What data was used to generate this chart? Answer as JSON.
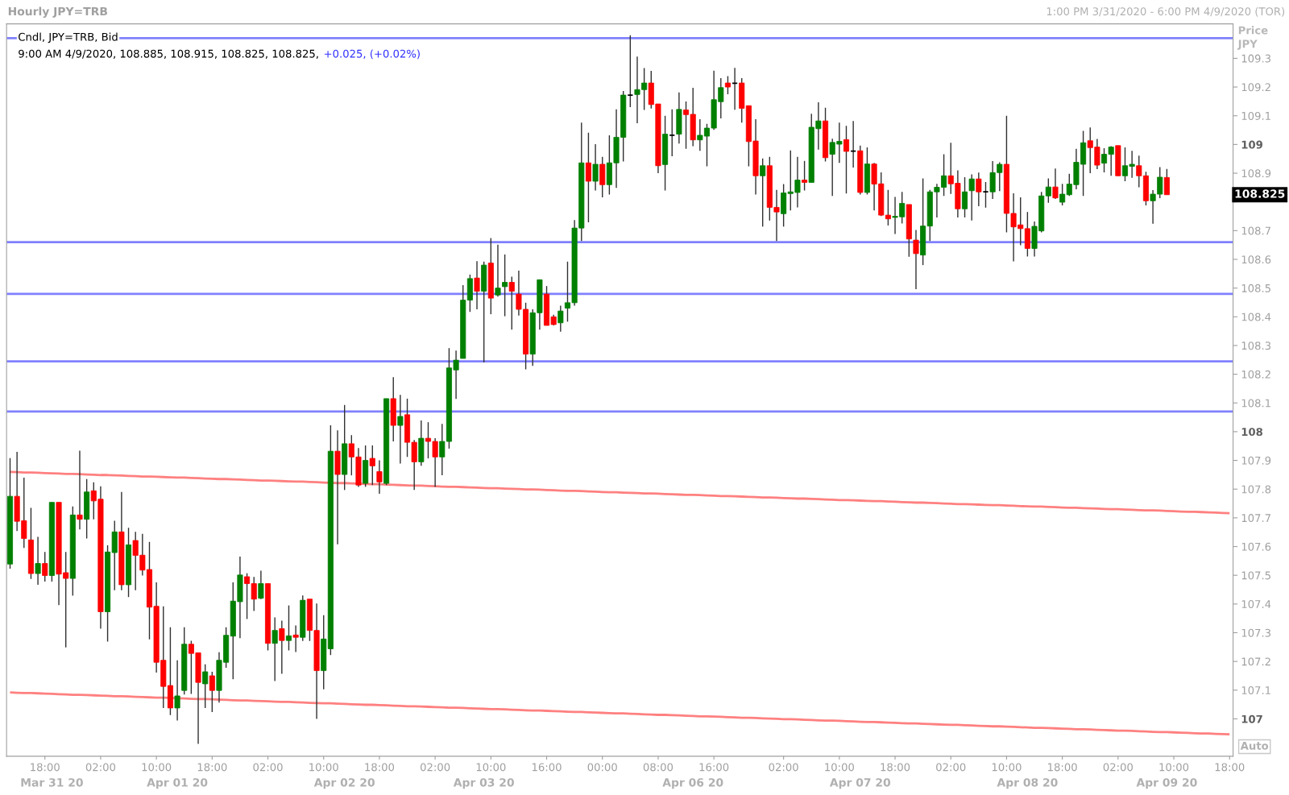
{
  "chart_data": {
    "type": "candlestick",
    "title": "Hourly JPY=TRB",
    "subtitle": "1:00 PM 3/31/2020 - 6:00 PM 4/9/2020 (TOR)",
    "ylabel": "Price\nJPY",
    "annotations": [
      "Cndl, JPY=TRB, Bid",
      "9:00 AM 4/9/2020, 108.885, 108.915, 108.825, 108.825,",
      "+0.025, (+0.02%)",
      "108.825",
      "Auto"
    ],
    "categories": [
      null,
      null,
      null,
      null,
      null,
      "18:00",
      "\nMar 31 20",
      null,
      null,
      null,
      null,
      null,
      null,
      "02:00",
      null,
      null,
      null,
      null,
      null,
      null,
      null,
      "10:00",
      null,
      null,
      "\nApr 01 20",
      null,
      null,
      null,
      null,
      "18:00",
      null,
      null,
      null,
      null,
      null,
      null,
      null,
      "02:00",
      null,
      null,
      null,
      null,
      null,
      null,
      null,
      "10:00",
      null,
      null,
      "\nApr 02 20",
      null,
      null,
      null,
      null,
      "18:00",
      null,
      null,
      null,
      null,
      null,
      null,
      null,
      "02:00",
      null,
      null,
      null,
      null,
      null,
      null,
      "\nApr 03 20",
      "10:00",
      null,
      null,
      null,
      null,
      null,
      null,
      null,
      "16:00",
      null,
      null,
      null,
      null,
      null,
      null,
      null,
      "00:00",
      null,
      null,
      null,
      null,
      null,
      null,
      null,
      "08:00",
      null,
      null,
      null,
      null,
      "\nApr 06 20",
      null,
      null,
      "16:00",
      null,
      null,
      null,
      null,
      null,
      null,
      null,
      null,
      null,
      "02:00",
      null,
      null,
      null,
      null,
      null,
      null,
      null,
      "10:00",
      null,
      null,
      "\nApr 07 20",
      null,
      null,
      null,
      null,
      "18:00",
      null,
      null,
      null,
      null,
      null,
      null,
      null,
      "02:00",
      null,
      null,
      null,
      null,
      null,
      null,
      null,
      "10:00",
      null,
      null,
      "\nApr 08 20",
      null,
      null,
      null,
      null,
      "18:00",
      null,
      null,
      null,
      null,
      null,
      null,
      null,
      "02:00",
      null,
      null,
      null,
      null,
      null,
      null,
      "\nApr 09 20",
      "10:00",
      null,
      null,
      null,
      null,
      null,
      null,
      null,
      "18:00"
    ],
    "ohlc": [
      [
        107.539,
        107.908,
        107.523,
        107.775
      ],
      [
        107.775,
        107.93,
        107.654,
        107.688
      ],
      [
        107.69,
        107.84,
        107.595,
        107.628
      ],
      [
        107.623,
        107.735,
        107.487,
        107.506
      ],
      [
        107.506,
        107.634,
        107.467,
        107.541
      ],
      [
        107.541,
        107.581,
        107.478,
        107.499
      ],
      [
        107.499,
        107.754,
        107.478,
        107.754
      ],
      [
        107.754,
        107.754,
        107.396,
        107.504
      ],
      [
        107.509,
        107.581,
        107.249,
        107.489
      ],
      [
        107.489,
        107.74,
        107.429,
        107.71
      ],
      [
        107.71,
        107.934,
        107.66,
        107.695
      ],
      [
        107.695,
        107.835,
        107.628,
        107.79
      ],
      [
        107.794,
        107.824,
        107.695,
        107.759
      ],
      [
        107.765,
        107.81,
        107.314,
        107.373
      ],
      [
        107.373,
        107.604,
        107.269,
        107.581
      ],
      [
        107.579,
        107.69,
        107.448,
        107.651
      ],
      [
        107.651,
        107.79,
        107.448,
        107.467
      ],
      [
        107.467,
        107.665,
        107.424,
        107.606
      ],
      [
        107.621,
        107.651,
        107.448,
        107.569
      ],
      [
        107.57,
        107.644,
        107.499,
        107.518
      ],
      [
        107.52,
        107.616,
        107.277,
        107.389
      ],
      [
        107.392,
        107.475,
        107.161,
        107.197
      ],
      [
        107.204,
        107.392,
        107.038,
        107.113
      ],
      [
        107.116,
        107.319,
        107.013,
        107.038
      ],
      [
        107.038,
        107.204,
        106.994,
        107.08
      ],
      [
        107.099,
        107.319,
        107.085,
        107.26
      ],
      [
        107.26,
        107.272,
        107.087,
        107.228
      ],
      [
        107.23,
        107.23,
        106.913,
        107.127
      ],
      [
        107.122,
        107.19,
        107.038,
        107.164
      ],
      [
        107.15,
        107.164,
        107.024,
        107.099
      ],
      [
        107.099,
        107.232,
        107.057,
        107.204
      ],
      [
        107.197,
        107.319,
        107.178,
        107.291
      ],
      [
        107.288,
        107.475,
        107.138,
        107.41
      ],
      [
        107.408,
        107.565,
        107.281,
        107.501
      ],
      [
        107.495,
        107.507,
        107.348,
        107.471
      ],
      [
        107.471,
        107.494,
        107.376,
        107.417
      ],
      [
        107.42,
        107.516,
        107.417,
        107.471
      ],
      [
        107.471,
        107.471,
        107.238,
        107.263
      ],
      [
        107.263,
        107.353,
        107.132,
        107.308
      ],
      [
        107.314,
        107.342,
        107.157,
        107.273
      ],
      [
        107.273,
        107.395,
        107.238,
        107.289
      ],
      [
        107.292,
        107.325,
        107.233,
        107.284
      ],
      [
        107.284,
        107.43,
        107.271,
        107.413
      ],
      [
        107.417,
        107.417,
        107.271,
        107.308
      ],
      [
        107.308,
        107.402,
        107.0,
        107.168
      ],
      [
        107.168,
        107.361,
        107.103,
        107.278
      ],
      [
        107.244,
        108.022,
        107.222,
        107.932
      ],
      [
        107.932,
        108.005,
        107.608,
        107.851
      ],
      [
        107.851,
        108.093,
        107.797,
        107.958
      ],
      [
        107.958,
        107.988,
        107.848,
        107.912
      ],
      [
        107.912,
        107.943,
        107.808,
        107.814
      ],
      [
        107.82,
        107.952,
        107.808,
        107.9
      ],
      [
        107.907,
        107.952,
        107.814,
        107.881
      ],
      [
        107.861,
        107.9,
        107.784,
        107.825
      ],
      [
        107.82,
        108.115,
        107.814,
        108.115
      ],
      [
        108.115,
        108.19,
        107.966,
        108.022
      ],
      [
        108.022,
        108.128,
        107.889,
        108.053
      ],
      [
        108.059,
        108.115,
        107.912,
        107.963
      ],
      [
        107.963,
        107.971,
        107.797,
        107.895
      ],
      [
        107.895,
        108.039,
        107.881,
        107.977
      ],
      [
        107.977,
        108.033,
        107.907,
        107.966
      ],
      [
        107.966,
        107.977,
        107.808,
        107.912
      ],
      [
        107.912,
        108.027,
        107.848,
        107.966
      ],
      [
        107.966,
        108.291,
        107.941,
        108.222
      ],
      [
        108.215,
        108.282,
        108.114,
        108.249
      ],
      [
        108.255,
        108.51,
        108.255,
        108.458
      ],
      [
        108.458,
        108.547,
        108.417,
        108.533
      ],
      [
        108.535,
        108.594,
        108.426,
        108.489
      ],
      [
        108.489,
        108.592,
        108.241,
        108.58
      ],
      [
        108.587,
        108.674,
        108.409,
        108.465
      ],
      [
        108.476,
        108.651,
        108.47,
        108.5
      ],
      [
        108.505,
        108.617,
        108.402,
        108.52
      ],
      [
        108.52,
        108.54,
        108.355,
        108.489
      ],
      [
        108.479,
        108.561,
        108.404,
        108.426
      ],
      [
        108.426,
        108.449,
        108.217,
        108.27
      ],
      [
        108.27,
        108.426,
        108.229,
        108.414
      ],
      [
        108.414,
        108.529,
        108.355,
        108.529
      ],
      [
        108.479,
        108.507,
        108.37,
        108.37
      ],
      [
        108.4,
        108.407,
        108.37,
        108.373
      ],
      [
        108.379,
        108.439,
        108.348,
        108.42
      ],
      [
        108.43,
        108.592,
        108.383,
        108.449
      ],
      [
        108.449,
        108.737,
        108.439,
        108.709
      ],
      [
        108.709,
        109.076,
        108.664,
        108.936
      ],
      [
        108.936,
        109.041,
        108.729,
        108.872
      ],
      [
        108.872,
        109.001,
        108.84,
        108.931
      ],
      [
        108.931,
        108.957,
        108.816,
        108.86
      ],
      [
        108.86,
        109.032,
        108.826,
        108.936
      ],
      [
        108.936,
        109.122,
        108.849,
        109.025
      ],
      [
        109.025,
        109.186,
        108.941,
        109.172
      ],
      [
        109.172,
        109.38,
        109.13,
        109.172
      ],
      [
        109.174,
        109.306,
        109.074,
        109.191
      ],
      [
        109.191,
        109.266,
        109.12,
        109.214
      ],
      [
        109.214,
        109.256,
        109.125,
        109.139
      ],
      [
        109.141,
        109.141,
        108.9,
        108.926
      ],
      [
        108.93,
        109.1,
        108.84,
        109.036
      ],
      [
        109.032,
        109.122,
        108.959,
        109.032
      ],
      [
        109.036,
        109.181,
        109.003,
        109.122
      ],
      [
        109.12,
        109.15,
        108.985,
        109.104
      ],
      [
        109.105,
        109.197,
        108.994,
        109.016
      ],
      [
        109.016,
        109.088,
        108.978,
        109.032
      ],
      [
        109.029,
        109.072,
        108.924,
        109.057
      ],
      [
        109.057,
        109.257,
        109.051,
        109.156
      ],
      [
        109.149,
        109.231,
        109.091,
        109.198
      ],
      [
        109.214,
        109.238,
        109.175,
        109.2
      ],
      [
        109.213,
        109.267,
        109.121,
        109.213
      ],
      [
        109.214,
        109.231,
        109.076,
        109.126
      ],
      [
        109.135,
        109.135,
        108.924,
        109.01
      ],
      [
        109.012,
        109.088,
        108.826,
        108.891
      ],
      [
        108.891,
        108.951,
        108.714,
        108.926
      ],
      [
        108.926,
        108.957,
        108.735,
        108.781
      ],
      [
        108.781,
        108.842,
        108.664,
        108.765
      ],
      [
        108.759,
        108.862,
        108.714,
        108.831
      ],
      [
        108.829,
        108.979,
        108.77,
        108.835
      ],
      [
        108.833,
        108.957,
        108.781,
        108.876
      ],
      [
        108.876,
        108.943,
        108.84,
        108.868
      ],
      [
        108.868,
        109.107,
        108.868,
        109.06
      ],
      [
        109.055,
        109.147,
        108.982,
        109.082
      ],
      [
        109.082,
        109.128,
        108.941,
        108.954
      ],
      [
        108.966,
        109.02,
        108.821,
        109.007
      ],
      [
        109.001,
        109.076,
        108.936,
        109.011
      ],
      [
        109.017,
        109.065,
        108.829,
        108.976
      ],
      [
        108.977,
        109.082,
        108.92,
        108.977
      ],
      [
        108.978,
        108.996,
        108.826,
        108.833
      ],
      [
        108.833,
        108.99,
        108.826,
        108.932
      ],
      [
        108.932,
        108.936,
        108.77,
        108.862
      ],
      [
        108.863,
        108.903,
        108.751,
        108.754
      ],
      [
        108.754,
        108.842,
        108.718,
        108.741
      ],
      [
        108.746,
        108.817,
        108.688,
        108.75
      ],
      [
        108.748,
        108.835,
        108.725,
        108.795
      ],
      [
        108.791,
        108.791,
        108.609,
        108.671
      ],
      [
        108.667,
        108.702,
        108.496,
        108.62
      ],
      [
        108.615,
        108.882,
        108.58,
        108.716
      ],
      [
        108.716,
        108.842,
        108.664,
        108.835
      ],
      [
        108.835,
        108.863,
        108.746,
        108.851
      ],
      [
        108.851,
        108.966,
        108.821,
        108.891
      ],
      [
        108.891,
        109.006,
        108.828,
        108.863
      ],
      [
        108.865,
        108.91,
        108.746,
        108.776
      ],
      [
        108.776,
        108.886,
        108.746,
        108.835
      ],
      [
        108.839,
        108.896,
        108.735,
        108.88
      ],
      [
        108.88,
        108.902,
        108.785,
        108.835
      ],
      [
        108.835,
        108.869,
        108.78,
        108.835
      ],
      [
        108.835,
        108.942,
        108.81,
        108.902
      ],
      [
        108.902,
        108.938,
        108.838,
        108.931
      ],
      [
        108.931,
        109.1,
        108.694,
        108.76
      ],
      [
        108.76,
        108.83,
        108.593,
        108.713
      ],
      [
        108.72,
        108.816,
        108.649,
        108.707
      ],
      [
        108.707,
        108.765,
        108.61,
        108.638
      ],
      [
        108.638,
        108.732,
        108.61,
        108.715
      ],
      [
        108.699,
        108.835,
        108.694,
        108.821
      ],
      [
        108.821,
        108.882,
        108.797,
        108.852
      ],
      [
        108.852,
        108.916,
        108.81,
        108.814
      ],
      [
        108.799,
        108.863,
        108.788,
        108.827
      ],
      [
        108.825,
        108.898,
        108.821,
        108.862
      ],
      [
        108.86,
        108.985,
        108.844,
        108.938
      ],
      [
        108.931,
        109.047,
        108.821,
        109.006
      ],
      [
        109.013,
        109.059,
        108.9,
        108.989
      ],
      [
        108.991,
        109.019,
        108.914,
        108.928
      ],
      [
        108.935,
        108.987,
        108.903,
        108.966
      ],
      [
        108.966,
        108.994,
        108.891,
        108.991
      ],
      [
        108.996,
        108.996,
        108.891,
        108.891
      ],
      [
        108.891,
        108.99,
        108.872,
        108.926
      ],
      [
        108.924,
        108.978,
        108.884,
        108.931
      ],
      [
        108.926,
        108.961,
        108.851,
        108.891
      ],
      [
        108.891,
        108.905,
        108.788,
        108.804
      ],
      [
        108.804,
        108.841,
        108.724,
        108.827
      ],
      [
        108.827,
        108.921,
        108.813,
        108.886
      ],
      [
        108.885,
        108.915,
        108.825,
        108.825
      ],
      null,
      null,
      null,
      null,
      null,
      null,
      null,
      null,
      null
    ],
    "colors": [
      "#008000",
      "#ff0000",
      "#ff0000",
      "#ff0000",
      "#008000",
      "#ff0000",
      "#008000",
      "#ff0000",
      "#ff0000",
      "#008000",
      "#ff0000",
      "#008000",
      "#ff0000",
      "#ff0000",
      "#008000",
      "#008000",
      "#ff0000",
      "#008000",
      "#ff0000",
      "#ff0000",
      "#ff0000",
      "#ff0000",
      "#ff0000",
      "#ff0000",
      "#008000",
      "#008000",
      "#ff0000",
      "#ff0000",
      "#008000",
      "#ff0000",
      "#008000",
      "#008000",
      "#008000",
      "#008000",
      "#ff0000",
      "#ff0000",
      "#008000",
      "#ff0000",
      "#008000",
      "#ff0000",
      "#008000",
      "#ff0000",
      "#008000",
      "#ff0000",
      "#ff0000",
      "#008000",
      "#008000",
      "#ff0000",
      "#008000",
      "#ff0000",
      "#ff0000",
      "#008000",
      "#ff0000",
      "#ff0000",
      "#008000",
      "#ff0000",
      "#008000",
      "#ff0000",
      "#ff0000",
      "#008000",
      "#ff0000",
      "#ff0000",
      "#008000",
      "#008000",
      "#008000",
      "#008000",
      "#008000",
      "#ff0000",
      "#008000",
      "#ff0000",
      "#008000",
      "#008000",
      "#ff0000",
      "#ff0000",
      "#ff0000",
      "#008000",
      "#008000",
      "#ff0000",
      "#ff0000",
      "#008000",
      "#008000",
      "#008000",
      "#008000",
      "#ff0000",
      "#008000",
      "#ff0000",
      "#008000",
      "#008000",
      "#008000",
      "#000000",
      "#008000",
      "#008000",
      "#ff0000",
      "#ff0000",
      "#008000",
      "#000000",
      "#008000",
      "#ff0000",
      "#ff0000",
      "#008000",
      "#008000",
      "#008000",
      "#008000",
      "#ff0000",
      "#000000",
      "#ff0000",
      "#ff0000",
      "#ff0000",
      "#008000",
      "#ff0000",
      "#ff0000",
      "#008000",
      "#008000",
      "#008000",
      "#ff0000",
      "#008000",
      "#008000",
      "#ff0000",
      "#008000",
      "#008000",
      "#ff0000",
      "#000000",
      "#ff0000",
      "#008000",
      "#ff0000",
      "#ff0000",
      "#ff0000",
      "#008000",
      "#008000",
      "#ff0000",
      "#ff0000",
      "#008000",
      "#008000",
      "#008000",
      "#008000",
      "#ff0000",
      "#ff0000",
      "#008000",
      "#008000",
      "#ff0000",
      "#000000",
      "#008000",
      "#008000",
      "#ff0000",
      "#ff0000",
      "#ff0000",
      "#ff0000",
      "#008000",
      "#008000",
      "#008000",
      "#ff0000",
      "#008000",
      "#008000",
      "#008000",
      "#008000",
      "#ff0000",
      "#ff0000",
      "#008000",
      "#008000",
      "#ff0000",
      "#008000",
      "#008000",
      "#ff0000",
      "#ff0000",
      "#008000",
      "#008000",
      "#ff0000",
      null,
      null,
      null,
      null,
      null,
      null,
      null,
      null,
      null
    ],
    "series": [
      {
        "type": "line",
        "color": "#ff8080",
        "values": [
          107.86,
          107.859,
          107.858,
          107.858,
          107.857,
          107.856,
          107.855,
          107.854,
          107.853,
          107.853,
          107.852,
          107.851,
          107.85,
          107.849,
          107.849,
          107.848,
          107.847,
          107.846,
          107.845,
          107.844,
          107.844,
          107.843,
          107.842,
          107.841,
          107.84,
          107.84,
          107.839,
          107.838,
          107.837,
          107.836,
          107.835,
          107.835,
          107.834,
          107.833,
          107.832,
          107.831,
          107.83,
          107.83,
          107.829,
          107.828,
          107.827,
          107.826,
          107.826,
          107.825,
          107.824,
          107.823,
          107.822,
          107.821,
          107.821,
          107.82,
          107.819,
          107.818,
          107.817,
          107.817,
          107.816,
          107.815,
          107.814,
          107.813,
          107.812,
          107.812,
          107.811,
          107.81,
          107.809,
          107.808,
          107.808,
          107.807,
          107.806,
          107.805,
          107.804,
          107.803,
          107.803,
          107.802,
          107.801,
          107.8,
          107.799,
          107.799,
          107.798,
          107.797,
          107.796,
          107.795,
          107.794,
          107.794,
          107.793,
          107.792,
          107.791,
          107.79,
          107.789,
          107.789,
          107.788,
          107.787,
          107.786,
          107.785,
          107.785,
          107.784,
          107.783,
          107.782,
          107.781,
          107.78,
          107.78,
          107.779,
          107.778,
          107.777,
          107.776,
          107.776,
          107.775,
          107.774,
          107.773,
          107.772,
          107.771,
          107.771,
          107.77,
          107.769,
          107.768,
          107.767,
          107.767,
          107.766,
          107.765,
          107.764,
          107.763,
          107.762,
          107.762,
          107.761,
          107.76,
          107.759,
          107.758,
          107.758,
          107.757,
          107.756,
          107.755,
          107.754,
          107.753,
          107.753,
          107.752,
          107.751,
          107.75,
          107.749,
          107.748,
          107.748,
          107.747,
          107.746,
          107.745,
          107.744,
          107.744,
          107.743,
          107.742,
          107.741,
          107.74,
          107.739,
          107.739,
          107.738,
          107.737,
          107.736,
          107.735,
          107.735,
          107.734,
          107.733,
          107.732,
          107.731,
          107.73,
          107.73,
          107.729,
          107.728,
          107.727,
          107.726,
          107.726,
          107.725,
          107.724,
          107.723,
          107.722,
          107.721,
          107.721,
          107.72,
          107.719,
          107.718,
          107.717,
          107.716
        ]
      },
      {
        "type": "line",
        "color": "#ff8080",
        "values": [
          107.092,
          107.091,
          107.09,
          107.09,
          107.089,
          107.088,
          107.087,
          107.086,
          107.085,
          107.084,
          107.084,
          107.083,
          107.082,
          107.081,
          107.08,
          107.079,
          107.079,
          107.078,
          107.077,
          107.076,
          107.075,
          107.074,
          107.074,
          107.073,
          107.072,
          107.071,
          107.07,
          107.069,
          107.069,
          107.068,
          107.067,
          107.066,
          107.065,
          107.064,
          107.064,
          107.063,
          107.062,
          107.061,
          107.06,
          107.059,
          107.059,
          107.058,
          107.057,
          107.056,
          107.055,
          107.054,
          107.054,
          107.053,
          107.052,
          107.051,
          107.05,
          107.049,
          107.049,
          107.048,
          107.047,
          107.046,
          107.045,
          107.044,
          107.044,
          107.043,
          107.042,
          107.041,
          107.04,
          107.039,
          107.039,
          107.038,
          107.037,
          107.036,
          107.035,
          107.034,
          107.034,
          107.033,
          107.032,
          107.031,
          107.03,
          107.029,
          107.029,
          107.028,
          107.027,
          107.026,
          107.025,
          107.024,
          107.024,
          107.023,
          107.022,
          107.021,
          107.02,
          107.019,
          107.019,
          107.018,
          107.017,
          107.016,
          107.015,
          107.014,
          107.014,
          107.013,
          107.012,
          107.011,
          107.01,
          107.009,
          107.009,
          107.008,
          107.007,
          107.006,
          107.005,
          107.004,
          107.004,
          107.003,
          107.002,
          107.001,
          107.0,
          106.999,
          106.999,
          106.998,
          106.997,
          106.996,
          106.995,
          106.994,
          106.994,
          106.993,
          106.992,
          106.991,
          106.99,
          106.989,
          106.989,
          106.988,
          106.987,
          106.986,
          106.985,
          106.984,
          106.984,
          106.983,
          106.982,
          106.981,
          106.98,
          106.979,
          106.979,
          106.978,
          106.977,
          106.976,
          106.975,
          106.974,
          106.974,
          106.973,
          106.972,
          106.971,
          106.97,
          106.969,
          106.969,
          106.968,
          106.967,
          106.966,
          106.965,
          106.964,
          106.964,
          106.963,
          106.962,
          106.961,
          106.96,
          106.959,
          106.959,
          106.958,
          106.957,
          106.956,
          106.955,
          106.954,
          106.954,
          106.953,
          106.952,
          106.951,
          106.95,
          106.949,
          106.949,
          106.948,
          106.947,
          106.946
        ]
      }
    ],
    "ref_lines": [
      {
        "axis": "y",
        "value": 109.37,
        "color": "#8080ff"
      },
      {
        "axis": "y",
        "value": 108.66,
        "color": "#8080ff"
      },
      {
        "axis": "y",
        "value": 108.48,
        "color": "#8080ff"
      },
      {
        "axis": "y",
        "value": 108.245,
        "color": "#8080ff"
      },
      {
        "axis": "y",
        "value": 108.07,
        "color": "#8080ff"
      }
    ],
    "ylim": [
      106.87,
      109.42
    ],
    "yticks": [
      107,
      107.1,
      107.2,
      107.3,
      107.4,
      107.5,
      107.6,
      107.7,
      107.8,
      107.9,
      108,
      108.1,
      108.2,
      108.3,
      108.4,
      108.5,
      108.6,
      108.7,
      {
        "value": 108.8,
        "label": null
      },
      108.9,
      109,
      109.1,
      109.2,
      109.3
    ]
  }
}
